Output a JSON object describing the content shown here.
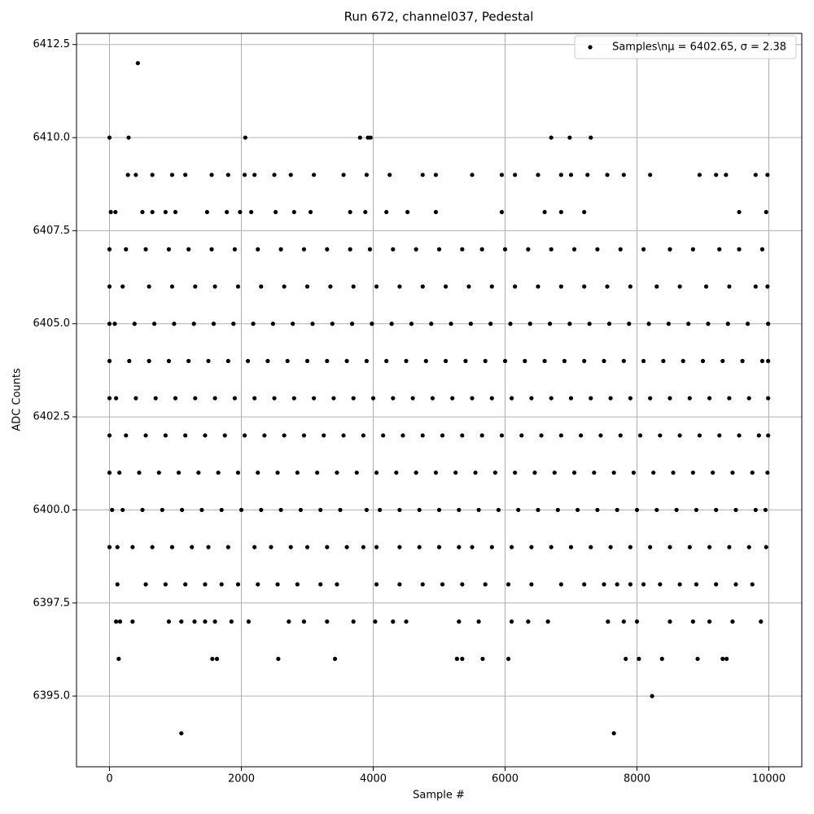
{
  "chart_data": {
    "type": "scatter",
    "title": "Run 672, channel037, Pedestal",
    "x_label": "Sample #",
    "y_label": "ADC Counts",
    "xlim": [
      -500,
      10500
    ],
    "ylim": [
      6393.1,
      6412.8
    ],
    "xticks": [
      0,
      2000,
      4000,
      6000,
      8000,
      10000
    ],
    "yticks": [
      {
        "value": 6395,
        "label": "6395.0"
      },
      6397.5,
      {
        "value": 6400,
        "label": "6400.0"
      },
      6402.5,
      {
        "value": 6405,
        "label": "6405.0"
      },
      6407.5,
      {
        "value": 6410,
        "label": "6410.0"
      },
      6412.5
    ],
    "grid": true,
    "legend": "upper right",
    "series": [
      {
        "name": "Samples\\nμ = 6402.65, σ = 2.38",
        "color": "#000000",
        "x": [
          430,
          0,
          290,
          2060,
          3800,
          3920,
          3960,
          6700,
          6980,
          7300,
          1090,
          7650,
          8230,
          140,
          1560,
          1630,
          2560,
          3420,
          5270,
          5350,
          5660,
          6050,
          7830,
          8030,
          8380,
          8920,
          9300,
          9360,
          100,
          160,
          350,
          900,
          1090,
          1290,
          1450,
          1600,
          1850,
          2110,
          2720,
          2950,
          3300,
          3700,
          4030,
          4300,
          4500,
          5300,
          5600,
          6100,
          6350,
          6650,
          7560,
          7800,
          8000,
          8500,
          8850,
          9100,
          9450,
          9880,
          20,
          90,
          500,
          650,
          850,
          1000,
          1480,
          1780,
          1980,
          2150,
          2520,
          2800,
          3050,
          3650,
          3880,
          4200,
          4520,
          4950,
          5950,
          6600,
          6850,
          7200,
          9550,
          9960,
          280,
          400,
          650,
          950,
          1150,
          1550,
          1800,
          2050,
          2200,
          2500,
          2750,
          3100,
          3550,
          3900,
          4250,
          4750,
          4950,
          5500,
          5950,
          6150,
          6500,
          6850,
          7000,
          7250,
          7550,
          7800,
          8200,
          8950,
          9200,
          9350,
          9800,
          9980,
          120,
          550,
          850,
          1150,
          1450,
          1700,
          1950,
          2250,
          2550,
          2850,
          3200,
          3450,
          4050,
          4400,
          4750,
          5050,
          5350,
          5700,
          6050,
          6400,
          6850,
          7200,
          7500,
          7700,
          7900,
          8100,
          8350,
          8650,
          8900,
          9200,
          9500,
          9750,
          0,
          120,
          350,
          650,
          950,
          1250,
          1500,
          1800,
          2200,
          2450,
          2750,
          3000,
          3300,
          3600,
          3850,
          4050,
          4400,
          4700,
          5000,
          5300,
          5500,
          5800,
          6100,
          6400,
          6700,
          7000,
          7300,
          7600,
          7900,
          8200,
          8500,
          8800,
          9100,
          9400,
          9700,
          9960,
          40,
          200,
          500,
          800,
          1100,
          1400,
          1700,
          2000,
          2300,
          2600,
          2900,
          3200,
          3500,
          3900,
          4100,
          4400,
          4700,
          5000,
          5300,
          5600,
          5900,
          6200,
          6500,
          6800,
          7100,
          7400,
          7700,
          8000,
          8300,
          8600,
          8900,
          9200,
          9500,
          9800,
          9950,
          0,
          150,
          450,
          750,
          1050,
          1350,
          1650,
          1950,
          2250,
          2550,
          2850,
          3150,
          3450,
          3750,
          4050,
          4350,
          4650,
          4950,
          5250,
          5550,
          5850,
          6150,
          6450,
          6750,
          7050,
          7350,
          7650,
          7950,
          8250,
          8550,
          8850,
          9150,
          9450,
          9750,
          9980,
          0,
          250,
          550,
          850,
          1150,
          1450,
          1750,
          2050,
          2350,
          2650,
          2950,
          3250,
          3550,
          3850,
          4150,
          4450,
          4750,
          5050,
          5350,
          5650,
          5950,
          6250,
          6550,
          6850,
          7150,
          7450,
          7750,
          8050,
          8350,
          8650,
          8950,
          9250,
          9550,
          9850,
          9990,
          0,
          100,
          400,
          700,
          1000,
          1300,
          1600,
          1900,
          2200,
          2500,
          2800,
          3100,
          3400,
          3700,
          4000,
          4300,
          4600,
          4900,
          5200,
          5500,
          5800,
          6100,
          6400,
          6700,
          7000,
          7300,
          7600,
          7900,
          8200,
          8500,
          8800,
          9100,
          9400,
          9700,
          9990,
          0,
          300,
          600,
          900,
          1200,
          1500,
          1800,
          2100,
          2400,
          2700,
          3000,
          3300,
          3600,
          3900,
          4200,
          4500,
          4800,
          5100,
          5400,
          5700,
          6000,
          6300,
          6600,
          6900,
          7200,
          7500,
          7800,
          8100,
          8400,
          8700,
          9000,
          9300,
          9600,
          9900,
          9990,
          0,
          80,
          380,
          680,
          980,
          1280,
          1580,
          1880,
          2180,
          2480,
          2780,
          3080,
          3380,
          3680,
          3980,
          4280,
          4580,
          4880,
          5180,
          5480,
          5780,
          6080,
          6380,
          6680,
          6980,
          7280,
          7580,
          7880,
          8180,
          8480,
          8780,
          9080,
          9380,
          9680,
          9990,
          0,
          200,
          600,
          950,
          1300,
          1600,
          1950,
          2300,
          2650,
          3000,
          3350,
          3700,
          4050,
          4400,
          4750,
          5100,
          5450,
          5800,
          6150,
          6500,
          6850,
          7200,
          7550,
          7900,
          8300,
          8650,
          9050,
          9400,
          9800,
          9980,
          0,
          250,
          550,
          900,
          1200,
          1550,
          1900,
          2250,
          2600,
          2950,
          3300,
          3650,
          3950,
          4300,
          4650,
          5000,
          5350,
          5650,
          6000,
          6350,
          6700,
          7050,
          7400,
          7750,
          8100,
          8500,
          8850,
          9250,
          9550,
          9900
        ],
        "values": [
          6412,
          6410,
          6410,
          6410,
          6410,
          6410,
          6410,
          6410,
          6410,
          6410,
          6394,
          6394,
          6395,
          6396,
          6396,
          6396,
          6396,
          6396,
          6396,
          6396,
          6396,
          6396,
          6396,
          6396,
          6396,
          6396,
          6396,
          6396,
          6397,
          6397,
          6397,
          6397,
          6397,
          6397,
          6397,
          6397,
          6397,
          6397,
          6397,
          6397,
          6397,
          6397,
          6397,
          6397,
          6397,
          6397,
          6397,
          6397,
          6397,
          6397,
          6397,
          6397,
          6397,
          6397,
          6397,
          6397,
          6397,
          6397,
          6408,
          6408,
          6408,
          6408,
          6408,
          6408,
          6408,
          6408,
          6408,
          6408,
          6408,
          6408,
          6408,
          6408,
          6408,
          6408,
          6408,
          6408,
          6408,
          6408,
          6408,
          6408,
          6408,
          6408,
          6409,
          6409,
          6409,
          6409,
          6409,
          6409,
          6409,
          6409,
          6409,
          6409,
          6409,
          6409,
          6409,
          6409,
          6409,
          6409,
          6409,
          6409,
          6409,
          6409,
          6409,
          6409,
          6409,
          6409,
          6409,
          6409,
          6409,
          6409,
          6409,
          6409,
          6409,
          6409,
          6398,
          6398,
          6398,
          6398,
          6398,
          6398,
          6398,
          6398,
          6398,
          6398,
          6398,
          6398,
          6398,
          6398,
          6398,
          6398,
          6398,
          6398,
          6398,
          6398,
          6398,
          6398,
          6398,
          6398,
          6398,
          6398,
          6398,
          6398,
          6398,
          6398,
          6398,
          6398,
          6399,
          6399,
          6399,
          6399,
          6399,
          6399,
          6399,
          6399,
          6399,
          6399,
          6399,
          6399,
          6399,
          6399,
          6399,
          6399,
          6399,
          6399,
          6399,
          6399,
          6399,
          6399,
          6399,
          6399,
          6399,
          6399,
          6399,
          6399,
          6399,
          6399,
          6399,
          6399,
          6399,
          6399,
          6399,
          6399,
          6400,
          6400,
          6400,
          6400,
          6400,
          6400,
          6400,
          6400,
          6400,
          6400,
          6400,
          6400,
          6400,
          6400,
          6400,
          6400,
          6400,
          6400,
          6400,
          6400,
          6400,
          6400,
          6400,
          6400,
          6400,
          6400,
          6400,
          6400,
          6400,
          6400,
          6400,
          6400,
          6400,
          6400,
          6400,
          6401,
          6401,
          6401,
          6401,
          6401,
          6401,
          6401,
          6401,
          6401,
          6401,
          6401,
          6401,
          6401,
          6401,
          6401,
          6401,
          6401,
          6401,
          6401,
          6401,
          6401,
          6401,
          6401,
          6401,
          6401,
          6401,
          6401,
          6401,
          6401,
          6401,
          6401,
          6401,
          6401,
          6401,
          6401,
          6402,
          6402,
          6402,
          6402,
          6402,
          6402,
          6402,
          6402,
          6402,
          6402,
          6402,
          6402,
          6402,
          6402,
          6402,
          6402,
          6402,
          6402,
          6402,
          6402,
          6402,
          6402,
          6402,
          6402,
          6402,
          6402,
          6402,
          6402,
          6402,
          6402,
          6402,
          6402,
          6402,
          6402,
          6402,
          6403,
          6403,
          6403,
          6403,
          6403,
          6403,
          6403,
          6403,
          6403,
          6403,
          6403,
          6403,
          6403,
          6403,
          6403,
          6403,
          6403,
          6403,
          6403,
          6403,
          6403,
          6403,
          6403,
          6403,
          6403,
          6403,
          6403,
          6403,
          6403,
          6403,
          6403,
          6403,
          6403,
          6403,
          6403,
          6404,
          6404,
          6404,
          6404,
          6404,
          6404,
          6404,
          6404,
          6404,
          6404,
          6404,
          6404,
          6404,
          6404,
          6404,
          6404,
          6404,
          6404,
          6404,
          6404,
          6404,
          6404,
          6404,
          6404,
          6404,
          6404,
          6404,
          6404,
          6404,
          6404,
          6404,
          6404,
          6404,
          6404,
          6404,
          6405,
          6405,
          6405,
          6405,
          6405,
          6405,
          6405,
          6405,
          6405,
          6405,
          6405,
          6405,
          6405,
          6405,
          6405,
          6405,
          6405,
          6405,
          6405,
          6405,
          6405,
          6405,
          6405,
          6405,
          6405,
          6405,
          6405,
          6405,
          6405,
          6405,
          6405,
          6405,
          6405,
          6405,
          6405,
          6406,
          6406,
          6406,
          6406,
          6406,
          6406,
          6406,
          6406,
          6406,
          6406,
          6406,
          6406,
          6406,
          6406,
          6406,
          6406,
          6406,
          6406,
          6406,
          6406,
          6406,
          6406,
          6406,
          6406,
          6406,
          6406,
          6406,
          6406,
          6406,
          6406,
          6407,
          6407,
          6407,
          6407,
          6407,
          6407,
          6407,
          6407,
          6407,
          6407,
          6407,
          6407,
          6407,
          6407,
          6407,
          6407,
          6407,
          6407,
          6407,
          6407,
          6407,
          6407,
          6407,
          6407,
          6407,
          6407,
          6407,
          6407,
          6407,
          6407
        ]
      }
    ]
  }
}
